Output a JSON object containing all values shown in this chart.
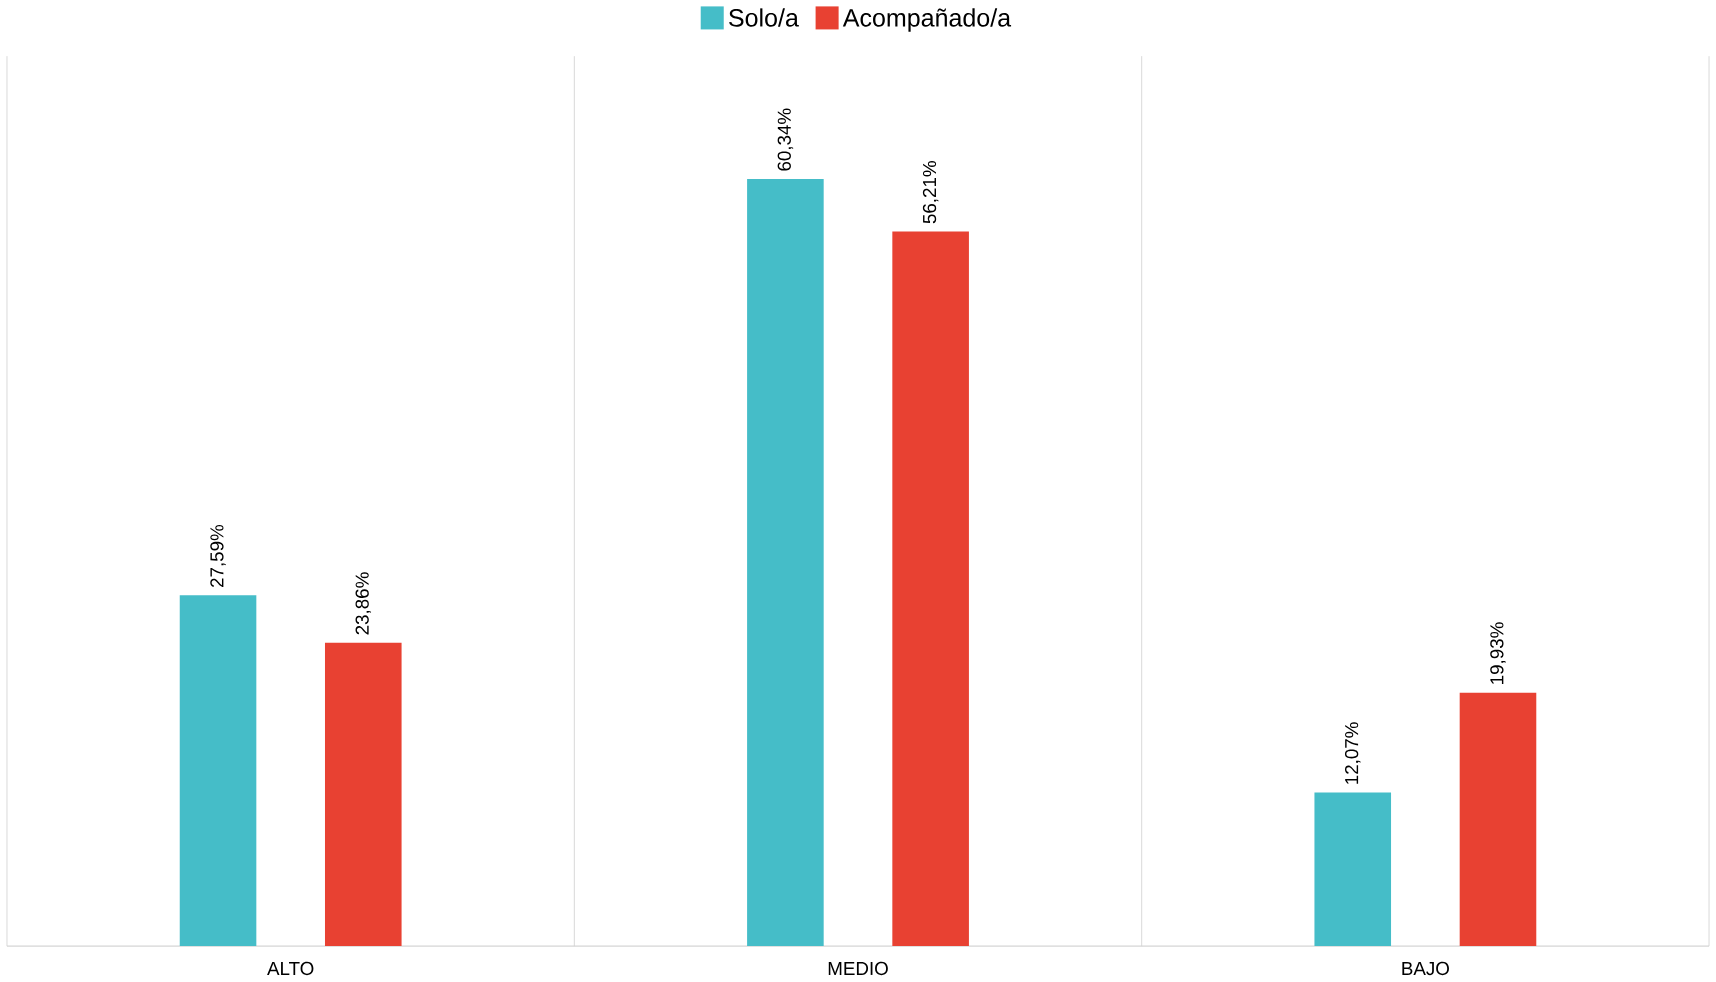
{
  "chart_data": {
    "type": "bar",
    "categories": [
      "ALTO",
      "MEDIO",
      "BAJO"
    ],
    "series": [
      {
        "name": "Solo/a",
        "color": "#45bdc8",
        "values": [
          27.59,
          60.34,
          12.07
        ],
        "value_labels": [
          "27,59%",
          "60,34%",
          "12,07%"
        ]
      },
      {
        "name": "Acompañado/a",
        "color": "#e84132",
        "values": [
          23.86,
          56.21,
          19.93
        ],
        "value_labels": [
          "23,86%",
          "56,21%",
          "19,93%"
        ]
      }
    ],
    "grid": "x",
    "legend": "top",
    "tick_labels": "x"
  }
}
